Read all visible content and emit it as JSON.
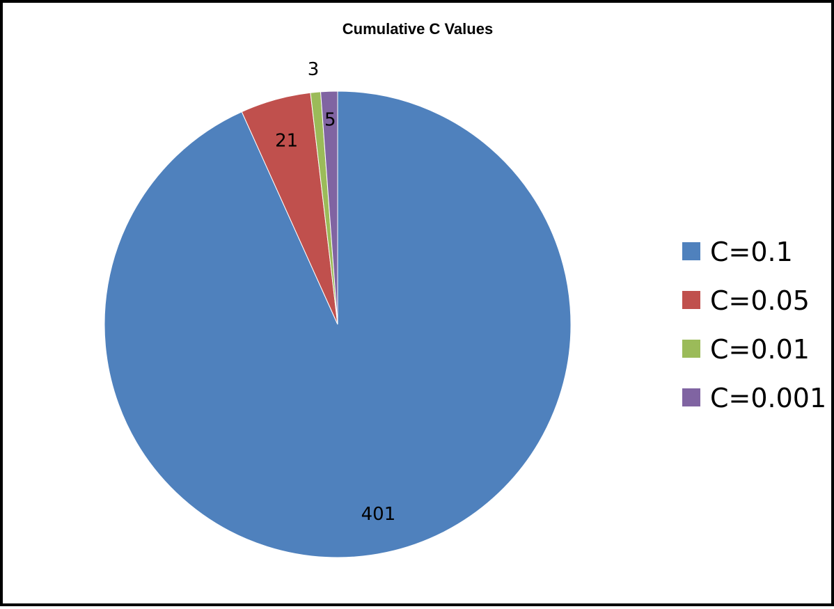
{
  "chart_data": {
    "type": "pie",
    "title": "Cumulative C Values",
    "categories": [
      "C=0.1",
      "C=0.05",
      "C=0.01",
      "C=0.001"
    ],
    "values": [
      401,
      21,
      3,
      5
    ],
    "labels": [
      "401",
      "21",
      "3",
      "5"
    ],
    "colors": [
      "#4F81BD",
      "#C0504D",
      "#9BBB59",
      "#8064A2"
    ],
    "start_angle_deg": 0,
    "direction": "clockwise",
    "legend_position": "right"
  }
}
